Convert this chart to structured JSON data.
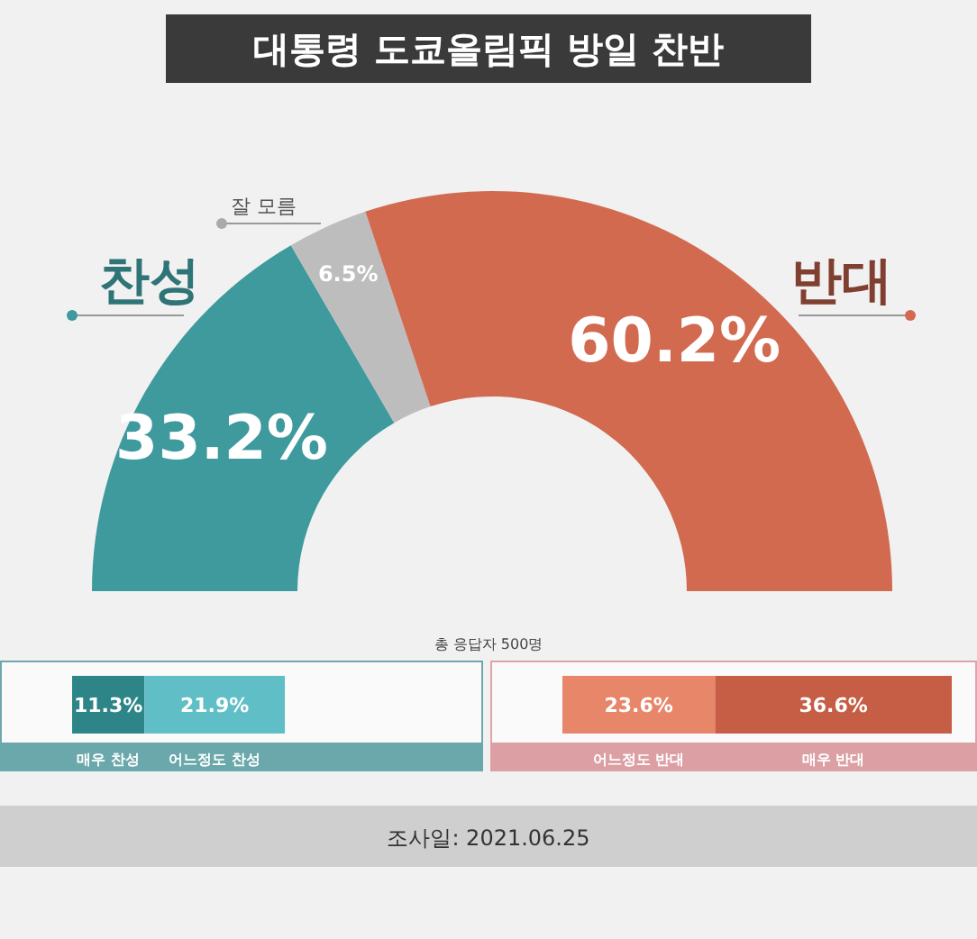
{
  "chart_data": [
    {
      "type": "donut",
      "title": "대통령 도쿄올림픽 방일 찬반",
      "categories": [
        "찬성",
        "잘 모름",
        "반대"
      ],
      "values": [
        33.2,
        6.5,
        60.2
      ],
      "colors": [
        "#3f9a9e",
        "#bdbdbd",
        "#d26a50"
      ],
      "value_labels": [
        "33.2%",
        "6.5%",
        "60.2%"
      ],
      "annotations": [
        "총 응답자 500명",
        "조사일: 2021.06.25"
      ]
    },
    {
      "type": "bar",
      "orientation": "horizontal",
      "stacked": true,
      "categories": [
        null
      ],
      "legend": "bottom",
      "data_labels": true,
      "series": [
        {
          "name": "매우 찬성",
          "color": "#2e8588",
          "values": [
            11.3
          ],
          "value_labels": [
            "11.3%"
          ]
        },
        {
          "name": "어느정도 찬성",
          "color": "#5fbec6",
          "values": [
            21.9
          ],
          "value_labels": [
            "21.9%"
          ]
        }
      ]
    },
    {
      "type": "bar",
      "orientation": "horizontal",
      "stacked": true,
      "categories": [
        null
      ],
      "legend": "bottom",
      "data_labels": true,
      "series": [
        {
          "name": "어느정도 반대",
          "color": "#e8866a",
          "values": [
            23.6
          ],
          "value_labels": [
            "23.6%"
          ]
        },
        {
          "name": "매우 반대",
          "color": "#c65d45",
          "values": [
            36.6
          ],
          "value_labels": [
            "36.6%"
          ]
        }
      ]
    }
  ]
}
